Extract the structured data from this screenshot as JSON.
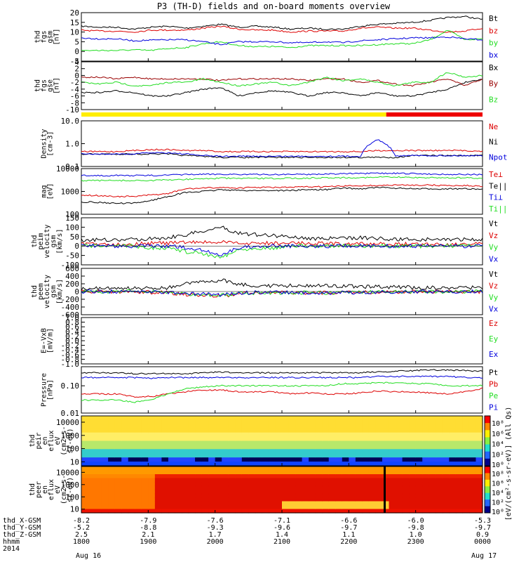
{
  "title": "P3 (TH-D) fields and on-board moments overview",
  "colors": {
    "black": "#000000",
    "red": "#dd0000",
    "blue": "#0000dd",
    "green": "#22dd22",
    "darkred": "#990000",
    "yellow": "#ffee00",
    "bar_red": "#ee0000"
  },
  "chart_data": [
    {
      "type": "line",
      "ylabel": [
        "thd",
        "fgs",
        "gsm",
        "[nT]"
      ],
      "ylim": [
        -5,
        20
      ],
      "yticks": [
        "20",
        "15",
        "10",
        "5",
        "0",
        "-5"
      ],
      "legend": [
        {
          "name": "Bt",
          "color": "black"
        },
        {
          "name": "bz",
          "color": "red"
        },
        {
          "name": "by",
          "color": "green"
        },
        {
          "name": "bx",
          "color": "blue"
        }
      ],
      "series": [
        {
          "name": "Bt",
          "color": "black",
          "values": [
            13,
            12.5,
            12.5,
            11.5,
            12.5,
            13,
            12,
            13,
            14,
            12.5,
            13,
            12.5,
            11.5,
            12,
            11.5,
            11.5,
            13,
            14,
            14.5,
            15,
            16,
            17.5,
            18,
            16.5
          ]
        },
        {
          "name": "bz",
          "color": "red",
          "values": [
            11,
            10.5,
            10.5,
            10,
            11,
            11,
            11,
            12,
            13,
            11.5,
            11,
            11,
            10,
            10.5,
            10.5,
            10.5,
            12,
            12.5,
            12,
            12,
            11,
            10,
            10.5,
            12
          ]
        },
        {
          "name": "by",
          "color": "green",
          "values": [
            0.5,
            0.5,
            0.5,
            0.8,
            0.5,
            1.5,
            2,
            4,
            5,
            3,
            2.5,
            2.5,
            2,
            3,
            3,
            3,
            3,
            3.5,
            4,
            4,
            6,
            11,
            6,
            6.5
          ]
        },
        {
          "name": "bx",
          "color": "blue",
          "values": [
            7,
            6.5,
            6.5,
            5.5,
            5.8,
            6,
            6,
            5,
            3.5,
            5,
            5,
            5,
            4.5,
            4.5,
            5,
            4.5,
            5.5,
            6,
            6.5,
            7,
            7,
            7.5,
            6.5,
            6
          ]
        }
      ]
    },
    {
      "type": "line",
      "ylabel": [
        "thd",
        "fgs",
        "gse",
        "[nT]"
      ],
      "ylim": [
        -10,
        4
      ],
      "yticks": [
        "4",
        "2",
        "0",
        "-2",
        "-4",
        "-6",
        "-8",
        "-10"
      ],
      "legend": [
        {
          "name": "Bx",
          "color": "black"
        },
        {
          "name": "By",
          "color": "darkred"
        },
        {
          "name": "Bz",
          "color": "green"
        }
      ],
      "series": [
        {
          "name": "Bx",
          "color": "black",
          "values": [
            -5,
            -5,
            -4.5,
            -5,
            -6,
            -6,
            -5,
            -4,
            -3.5,
            -6,
            -5,
            -4.5,
            -5,
            -6,
            -5,
            -5,
            -6,
            -5,
            -6,
            -6,
            -5,
            -4,
            -2,
            -1
          ]
        },
        {
          "name": "By",
          "color": "darkred",
          "values": [
            -0.5,
            -0.5,
            -1,
            -0.5,
            -1,
            -1,
            -1,
            -1,
            -1.5,
            -1,
            -1,
            -1,
            -1,
            -1.5,
            -1,
            -1,
            -2,
            -1.5,
            -2.5,
            -3,
            -2,
            -1,
            -3,
            -1
          ]
        },
        {
          "name": "Bz",
          "color": "green",
          "values": [
            -2,
            -2.5,
            -2,
            -3,
            -3,
            -2,
            -2,
            -1,
            -2,
            -3,
            -2.5,
            -2,
            -3,
            -2,
            -0.5,
            -1.5,
            -1,
            -2,
            -3,
            -2,
            -2,
            1,
            -0.5,
            0
          ]
        }
      ]
    },
    {
      "type": "line",
      "ylabel": [
        "Density",
        "[cm-3]"
      ],
      "scale": "log",
      "ylim": [
        0.1,
        10
      ],
      "yticks": [
        "10.0",
        "1.0",
        "0.1"
      ],
      "legend": [
        {
          "name": "Ne",
          "color": "red"
        },
        {
          "name": "Ni",
          "color": "black"
        },
        {
          "name": "Npot",
          "color": "blue"
        }
      ],
      "series": [
        {
          "name": "Ne",
          "color": "red",
          "values": [
            0.45,
            0.45,
            0.45,
            0.5,
            0.55,
            0.55,
            0.5,
            0.5,
            0.45,
            0.45,
            0.45,
            0.45,
            0.45,
            0.45,
            0.45,
            0.45,
            0.45,
            0.5,
            0.5,
            0.5,
            0.5,
            0.5,
            0.5,
            0.45
          ]
        },
        {
          "name": "Ni",
          "color": "black",
          "values": [
            0.35,
            0.35,
            0.35,
            0.35,
            0.35,
            0.35,
            0.3,
            0.28,
            0.25,
            0.25,
            0.25,
            0.25,
            0.25,
            0.25,
            0.25,
            0.25,
            0.25,
            0.25,
            0.25,
            0.3,
            0.3,
            0.3,
            0.3,
            0.3
          ]
        },
        {
          "name": "Npot",
          "color": "blue",
          "values": [
            0.35,
            0.35,
            0.35,
            0.35,
            0.4,
            0.4,
            0.35,
            0.3,
            0.28,
            0.28,
            0.28,
            0.28,
            0.28,
            0.28,
            0.28,
            0.28,
            0.28,
            1.5,
            0.3,
            0.3,
            0.3,
            0.3,
            0.3,
            0.3
          ]
        }
      ]
    },
    {
      "type": "line",
      "ylabel": [
        "mag",
        "[eV]"
      ],
      "scale": "log",
      "ylim": [
        100,
        10000
      ],
      "yticks": [
        "10000",
        "1000",
        "100"
      ],
      "legend": [
        {
          "name": "Te⊥",
          "color": "red"
        },
        {
          "name": "Te||",
          "color": "black"
        },
        {
          "name": "Ti⊥",
          "color": "blue"
        },
        {
          "name": "Ti||",
          "color": "green"
        }
      ],
      "series": [
        {
          "name": "Te⊥",
          "color": "red",
          "values": [
            700,
            650,
            600,
            600,
            700,
            800,
            1300,
            1400,
            1500,
            1400,
            1500,
            1500,
            1500,
            1600,
            1600,
            1700,
            1800,
            1800,
            1900,
            1900,
            1900,
            1800,
            1800,
            1700
          ]
        },
        {
          "name": "Te||",
          "color": "black",
          "values": [
            350,
            330,
            300,
            300,
            400,
            600,
            900,
            1000,
            1200,
            1100,
            1100,
            1100,
            1100,
            1200,
            1200,
            1400,
            1300,
            1500,
            1400,
            1300,
            1300,
            1300,
            1300,
            1200
          ]
        },
        {
          "name": "Ti⊥",
          "color": "blue",
          "values": [
            5000,
            5000,
            5000,
            5000,
            5000,
            5200,
            5500,
            5600,
            5700,
            5600,
            5500,
            5500,
            5600,
            5600,
            5800,
            6000,
            6000,
            6200,
            6200,
            6000,
            5800,
            5600,
            5500,
            5500
          ]
        },
        {
          "name": "Ti||",
          "color": "green",
          "values": [
            3000,
            3000,
            3000,
            3000,
            3000,
            3200,
            3400,
            3600,
            3800,
            3700,
            3700,
            3700,
            3800,
            3800,
            4000,
            4000,
            4000,
            4200,
            4200,
            4100,
            4000,
            4000,
            3900,
            3800
          ]
        }
      ]
    },
    {
      "type": "line",
      "ylabel": [
        "thd",
        "peim",
        "velocity",
        "gsm",
        "[km/s]"
      ],
      "ylim": [
        -100,
        150
      ],
      "yticks": [
        "150",
        "100",
        "50",
        "0",
        "-50",
        "-100"
      ],
      "legend": [
        {
          "name": "Vt",
          "color": "black"
        },
        {
          "name": "Vz",
          "color": "red"
        },
        {
          "name": "Vy",
          "color": "green"
        },
        {
          "name": "Vx",
          "color": "blue"
        }
      ],
      "series": [
        {
          "name": "Vt",
          "color": "black",
          "values": [
            30,
            35,
            30,
            35,
            40,
            45,
            60,
            80,
            100,
            70,
            60,
            55,
            50,
            40,
            40,
            40,
            45,
            40,
            35,
            35,
            35,
            35,
            35,
            35
          ]
        },
        {
          "name": "Vz",
          "color": "red",
          "values": [
            10,
            10,
            10,
            10,
            15,
            15,
            20,
            20,
            20,
            15,
            15,
            15,
            15,
            15,
            15,
            10,
            10,
            10,
            10,
            10,
            10,
            10,
            10,
            10
          ]
        },
        {
          "name": "Vy",
          "color": "green",
          "values": [
            0,
            0,
            0,
            0,
            -10,
            -10,
            -30,
            -40,
            -60,
            -20,
            -10,
            -10,
            0,
            0,
            0,
            0,
            0,
            0,
            0,
            0,
            0,
            0,
            0,
            0
          ]
        },
        {
          "name": "Vx",
          "color": "blue",
          "values": [
            0,
            0,
            0,
            0,
            0,
            0,
            -10,
            -20,
            -50,
            -10,
            0,
            0,
            0,
            0,
            0,
            0,
            0,
            0,
            0,
            0,
            0,
            0,
            0,
            0
          ]
        }
      ]
    },
    {
      "type": "line",
      "ylabel": [
        "thd",
        "peem",
        "velocity",
        "gsm",
        "[km/s]"
      ],
      "ylim": [
        -600,
        600
      ],
      "yticks": [
        "600",
        "400",
        "200",
        "0",
        "-200",
        "-400",
        "-600"
      ],
      "legend": [
        {
          "name": "Vt",
          "color": "black"
        },
        {
          "name": "Vz",
          "color": "red"
        },
        {
          "name": "Vy",
          "color": "green"
        },
        {
          "name": "Vx",
          "color": "blue"
        }
      ],
      "series": [
        {
          "name": "Vt",
          "color": "black",
          "values": [
            80,
            80,
            80,
            80,
            90,
            100,
            200,
            250,
            300,
            200,
            150,
            150,
            150,
            150,
            150,
            150,
            120,
            120,
            120,
            100,
            100,
            100,
            100,
            100
          ]
        },
        {
          "name": "Vz",
          "color": "red",
          "values": [
            0,
            0,
            0,
            0,
            -20,
            -30,
            -80,
            -100,
            -120,
            -60,
            -30,
            -30,
            -30,
            -30,
            -30,
            -20,
            -20,
            -20,
            -10,
            -10,
            -10,
            -10,
            -10,
            -10
          ]
        },
        {
          "name": "Vy",
          "color": "green",
          "values": [
            0,
            0,
            0,
            0,
            -10,
            -20,
            -60,
            -80,
            -100,
            -50,
            -30,
            -30,
            -30,
            -30,
            -40,
            -30,
            -20,
            -10,
            -10,
            0,
            0,
            0,
            0,
            0
          ]
        },
        {
          "name": "Vx",
          "color": "blue",
          "values": [
            0,
            0,
            0,
            0,
            -10,
            -20,
            -50,
            -60,
            -90,
            -40,
            -20,
            -20,
            -20,
            -30,
            -40,
            -30,
            -20,
            -10,
            -10,
            0,
            0,
            0,
            0,
            0
          ]
        }
      ]
    },
    {
      "type": "line",
      "ylabel": [
        "E=-VxB",
        "[mV/m]"
      ],
      "ylim": [
        -1,
        1
      ],
      "yticks": [
        "1.0",
        "0.8",
        "0.6",
        "0.4",
        "0.2",
        "0.0",
        "-0.2",
        "-0.4",
        "-0.6",
        "-0.8",
        "-1.0"
      ],
      "legend": [
        {
          "name": "Ez",
          "color": "red"
        },
        {
          "name": "Ey",
          "color": "green"
        },
        {
          "name": "Ex",
          "color": "blue"
        }
      ],
      "series": []
    },
    {
      "type": "line",
      "ylabel": [
        "Pressure",
        "[nPa]"
      ],
      "scale": "log",
      "ylim": [
        0.01,
        0.5
      ],
      "yticks": [
        "0.10",
        "0.01"
      ],
      "legend": [
        {
          "name": "Pt",
          "color": "black"
        },
        {
          "name": "Pb",
          "color": "red"
        },
        {
          "name": "Pe",
          "color": "green"
        },
        {
          "name": "Pi",
          "color": "blue"
        }
      ],
      "series": [
        {
          "name": "Pt",
          "color": "black",
          "values": [
            0.3,
            0.3,
            0.3,
            0.28,
            0.28,
            0.28,
            0.28,
            0.3,
            0.32,
            0.3,
            0.3,
            0.3,
            0.3,
            0.3,
            0.3,
            0.3,
            0.3,
            0.32,
            0.34,
            0.36,
            0.38,
            0.38,
            0.36,
            0.34
          ]
        },
        {
          "name": "Pb",
          "color": "red",
          "values": [
            0.05,
            0.05,
            0.05,
            0.04,
            0.04,
            0.05,
            0.06,
            0.07,
            0.07,
            0.06,
            0.06,
            0.06,
            0.05,
            0.055,
            0.05,
            0.05,
            0.055,
            0.065,
            0.06,
            0.06,
            0.055,
            0.05,
            0.06,
            0.08
          ]
        },
        {
          "name": "Pe",
          "color": "green",
          "values": [
            0.03,
            0.03,
            0.03,
            0.025,
            0.03,
            0.05,
            0.08,
            0.09,
            0.1,
            0.1,
            0.1,
            0.1,
            0.1,
            0.1,
            0.1,
            0.12,
            0.12,
            0.13,
            0.13,
            0.12,
            0.12,
            0.1,
            0.1,
            0.1
          ]
        },
        {
          "name": "Pi",
          "color": "blue",
          "values": [
            0.2,
            0.2,
            0.2,
            0.2,
            0.19,
            0.2,
            0.2,
            0.2,
            0.2,
            0.2,
            0.2,
            0.2,
            0.2,
            0.2,
            0.2,
            0.2,
            0.2,
            0.22,
            0.22,
            0.22,
            0.22,
            0.22,
            0.2,
            0.2
          ]
        }
      ]
    },
    {
      "type": "heatmap",
      "ylabel": [
        "thd",
        "peir",
        "en",
        "eflux",
        "eV",
        "(cm2-s-",
        "sr-eV)"
      ],
      "scale": "log",
      "ylim": [
        5,
        30000
      ],
      "yticks": [
        "10000",
        "1000",
        "100",
        "10"
      ],
      "colorbar_ticks": [
        "10⁸",
        "10⁶",
        "10⁴",
        "10²",
        "10⁰"
      ],
      "colorbar_label": "[eV/(cm²-s-sr-eV)] (All Qs)"
    },
    {
      "type": "heatmap",
      "ylabel": [
        "thd",
        "peer",
        "en",
        "eflux",
        "eV",
        "(cm2-s-",
        "sr-eV)"
      ],
      "scale": "log",
      "ylim": [
        5,
        30000
      ],
      "yticks": [
        "10000",
        "1000",
        "100",
        "10"
      ],
      "colorbar_ticks": [
        "10⁸",
        "10⁶",
        "10⁴",
        "10²",
        "10⁰"
      ]
    }
  ],
  "time_axis": {
    "hhmm": [
      "1800",
      "1900",
      "2000",
      "2100",
      "2200",
      "2300",
      "0000"
    ],
    "thd_x_gsm": [
      "-8.2",
      "-7.9",
      "-7.6",
      "-7.1",
      "-6.6",
      "-6.0",
      "-5.3"
    ],
    "thd_y_gsm": [
      "-5.2",
      "-8.8",
      "-9.3",
      "-9.6",
      "-9.7",
      "-9.8",
      "-9.7"
    ],
    "thd_z_gsm": [
      "2.5",
      "2.1",
      "1.7",
      "1.4",
      "1.1",
      "1.0",
      "0.9"
    ],
    "row_labels": [
      "thd_X-GSM",
      "thd_Y-GSM",
      "thd_Z-GSM",
      "hhmm",
      "2014"
    ],
    "date_start": "Aug 16",
    "date_end": "Aug 17"
  },
  "mode_bar": {
    "yellow_fraction": 0.76
  }
}
